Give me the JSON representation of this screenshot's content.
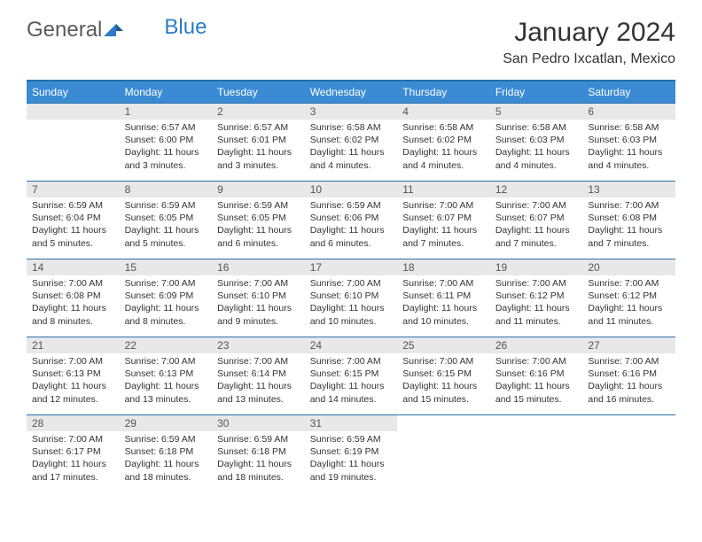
{
  "logo": {
    "part1": "General",
    "part2": "Blue"
  },
  "title": "January 2024",
  "location": "San Pedro Ixcatlan, Mexico",
  "calendar": {
    "header_bg": "#3b8bd4",
    "header_fg": "#ffffff",
    "border_color": "#2b6fa8",
    "daynum_bg": "#e8e8e8",
    "day_headers": [
      "Sunday",
      "Monday",
      "Tuesday",
      "Wednesday",
      "Thursday",
      "Friday",
      "Saturday"
    ],
    "first_day_col": 1,
    "days": [
      {
        "n": 1,
        "sr": "6:57 AM",
        "ss": "6:00 PM",
        "dl": "11 hours and 3 minutes."
      },
      {
        "n": 2,
        "sr": "6:57 AM",
        "ss": "6:01 PM",
        "dl": "11 hours and 3 minutes."
      },
      {
        "n": 3,
        "sr": "6:58 AM",
        "ss": "6:02 PM",
        "dl": "11 hours and 4 minutes."
      },
      {
        "n": 4,
        "sr": "6:58 AM",
        "ss": "6:02 PM",
        "dl": "11 hours and 4 minutes."
      },
      {
        "n": 5,
        "sr": "6:58 AM",
        "ss": "6:03 PM",
        "dl": "11 hours and 4 minutes."
      },
      {
        "n": 6,
        "sr": "6:58 AM",
        "ss": "6:03 PM",
        "dl": "11 hours and 4 minutes."
      },
      {
        "n": 7,
        "sr": "6:59 AM",
        "ss": "6:04 PM",
        "dl": "11 hours and 5 minutes."
      },
      {
        "n": 8,
        "sr": "6:59 AM",
        "ss": "6:05 PM",
        "dl": "11 hours and 5 minutes."
      },
      {
        "n": 9,
        "sr": "6:59 AM",
        "ss": "6:05 PM",
        "dl": "11 hours and 6 minutes."
      },
      {
        "n": 10,
        "sr": "6:59 AM",
        "ss": "6:06 PM",
        "dl": "11 hours and 6 minutes."
      },
      {
        "n": 11,
        "sr": "7:00 AM",
        "ss": "6:07 PM",
        "dl": "11 hours and 7 minutes."
      },
      {
        "n": 12,
        "sr": "7:00 AM",
        "ss": "6:07 PM",
        "dl": "11 hours and 7 minutes."
      },
      {
        "n": 13,
        "sr": "7:00 AM",
        "ss": "6:08 PM",
        "dl": "11 hours and 7 minutes."
      },
      {
        "n": 14,
        "sr": "7:00 AM",
        "ss": "6:08 PM",
        "dl": "11 hours and 8 minutes."
      },
      {
        "n": 15,
        "sr": "7:00 AM",
        "ss": "6:09 PM",
        "dl": "11 hours and 8 minutes."
      },
      {
        "n": 16,
        "sr": "7:00 AM",
        "ss": "6:10 PM",
        "dl": "11 hours and 9 minutes."
      },
      {
        "n": 17,
        "sr": "7:00 AM",
        "ss": "6:10 PM",
        "dl": "11 hours and 10 minutes."
      },
      {
        "n": 18,
        "sr": "7:00 AM",
        "ss": "6:11 PM",
        "dl": "11 hours and 10 minutes."
      },
      {
        "n": 19,
        "sr": "7:00 AM",
        "ss": "6:12 PM",
        "dl": "11 hours and 11 minutes."
      },
      {
        "n": 20,
        "sr": "7:00 AM",
        "ss": "6:12 PM",
        "dl": "11 hours and 11 minutes."
      },
      {
        "n": 21,
        "sr": "7:00 AM",
        "ss": "6:13 PM",
        "dl": "11 hours and 12 minutes."
      },
      {
        "n": 22,
        "sr": "7:00 AM",
        "ss": "6:13 PM",
        "dl": "11 hours and 13 minutes."
      },
      {
        "n": 23,
        "sr": "7:00 AM",
        "ss": "6:14 PM",
        "dl": "11 hours and 13 minutes."
      },
      {
        "n": 24,
        "sr": "7:00 AM",
        "ss": "6:15 PM",
        "dl": "11 hours and 14 minutes."
      },
      {
        "n": 25,
        "sr": "7:00 AM",
        "ss": "6:15 PM",
        "dl": "11 hours and 15 minutes."
      },
      {
        "n": 26,
        "sr": "7:00 AM",
        "ss": "6:16 PM",
        "dl": "11 hours and 15 minutes."
      },
      {
        "n": 27,
        "sr": "7:00 AM",
        "ss": "6:16 PM",
        "dl": "11 hours and 16 minutes."
      },
      {
        "n": 28,
        "sr": "7:00 AM",
        "ss": "6:17 PM",
        "dl": "11 hours and 17 minutes."
      },
      {
        "n": 29,
        "sr": "6:59 AM",
        "ss": "6:18 PM",
        "dl": "11 hours and 18 minutes."
      },
      {
        "n": 30,
        "sr": "6:59 AM",
        "ss": "6:18 PM",
        "dl": "11 hours and 18 minutes."
      },
      {
        "n": 31,
        "sr": "6:59 AM",
        "ss": "6:19 PM",
        "dl": "11 hours and 19 minutes."
      }
    ],
    "labels": {
      "sunrise": "Sunrise:",
      "sunset": "Sunset:",
      "daylight": "Daylight:"
    }
  }
}
